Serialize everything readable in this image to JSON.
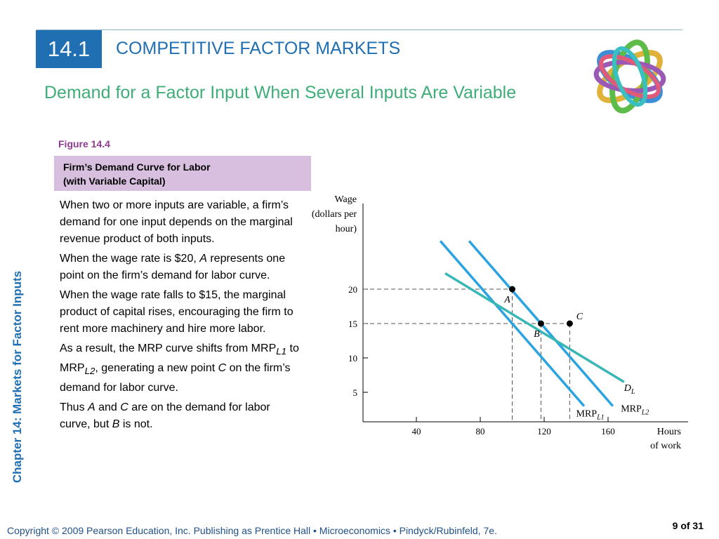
{
  "header": {
    "section_number": "14.1",
    "section_title": "COMPETITIVE FACTOR MARKETS",
    "subtitle": "Demand for a Factor Input When Several Inputs Are Variable"
  },
  "figure": {
    "label": "Figure 14.4",
    "caption_line1": "Firm’s Demand Curve for Labor",
    "caption_line2": "(with Variable Capital)"
  },
  "body": {
    "p1": "When two or more inputs are variable, a firm’s demand for one input depends on the marginal revenue product of both inputs.",
    "p2_before": "When the wage rate is $20, ",
    "p2_italic": "A",
    "p2_after": " represents one point on the firm’s demand for labor curve.",
    "p3": "When the wage rate falls to $15, the marginal product of capital rises, encouraging the firm to rent more machinery and hire more labor.",
    "p4_part1": "As a result, the MRP curve shifts from MRP",
    "p4_sub1": "L1",
    "p4_part2": " to MRP",
    "p4_sub2": "L2",
    "p4_part3": ", generating a new point ",
    "p4_italic": "C",
    "p4_part4": " on the firm’s demand for labor curve.",
    "p5_part1": "Thus ",
    "p5_italic1": "A",
    "p5_part2": " and ",
    "p5_italic2": "C",
    "p5_part3": " are on the demand for labor curve, but ",
    "p5_italic3": "B",
    "p5_part4": " is not."
  },
  "side_title": "Chapter 14: Markets for Factor Inputs",
  "footer": {
    "copyright": "Copyright © 2009 Pearson Education, Inc. Publishing as Prentice Hall  •  Microeconomics  •  Pindyck/Rubinfeld, 7e.",
    "page": "9 of 31"
  },
  "colors": {
    "accent_blue": "#1f6fb2",
    "subtitle_green": "#3fad78",
    "mrp_blue": "#2aa3e0",
    "demand_teal": "#38b7b5"
  },
  "chart_data": {
    "type": "line",
    "ylabel_lines": [
      "Wage",
      "(dollars per",
      "hour)"
    ],
    "xlabel_lines": [
      "Hours",
      "of work"
    ],
    "xlim": [
      0,
      200
    ],
    "ylim": [
      0,
      27
    ],
    "xticks": [
      40,
      80,
      120,
      160
    ],
    "yticks": [
      5,
      10,
      15,
      20
    ],
    "series": [
      {
        "name": "MRP",
        "sub": "L1",
        "x": [
          55,
          145
        ],
        "y": [
          27,
          3
        ],
        "label_x": 140,
        "label_y": 1.5
      },
      {
        "name": "MRP",
        "sub": "L2",
        "x": [
          73,
          163
        ],
        "y": [
          27,
          3
        ],
        "label_x": 168,
        "label_y": 2.2
      },
      {
        "name": "D",
        "sub": "L",
        "x": [
          58,
          170
        ],
        "y": [
          22.3,
          6.5
        ],
        "label_x": 170,
        "label_y": 5.2
      }
    ],
    "points": [
      {
        "label": "A",
        "x": 100,
        "y": 20,
        "label_dx": -7,
        "label_dy": 19
      },
      {
        "label": "B",
        "x": 118,
        "y": 15,
        "label_dx": -6,
        "label_dy": 19
      },
      {
        "label": "C",
        "x": 136,
        "y": 15,
        "label_dx": 14,
        "label_dy": -6
      }
    ]
  }
}
